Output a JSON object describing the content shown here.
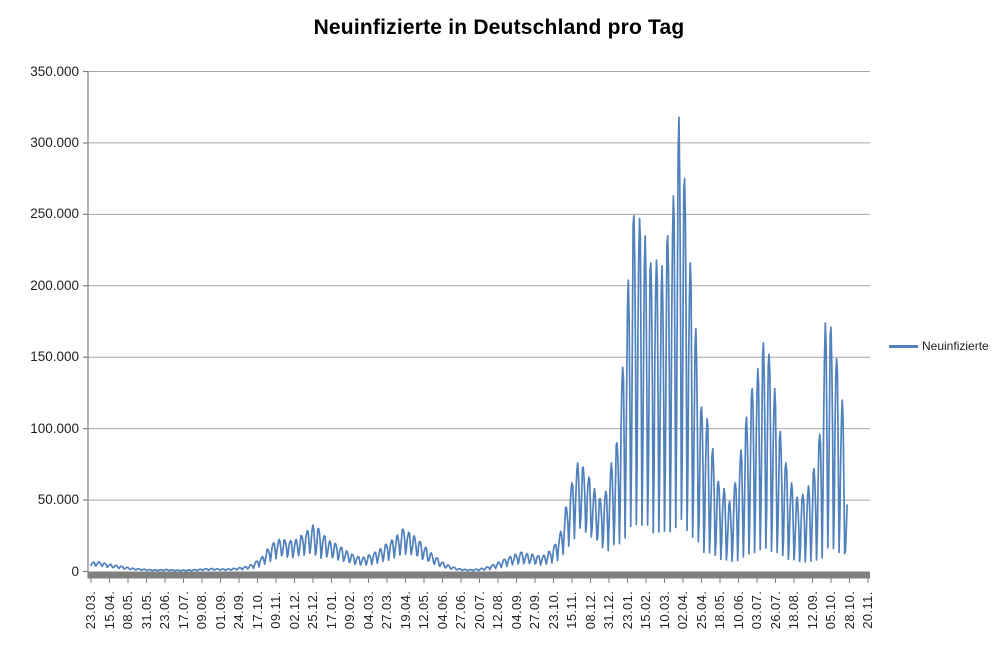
{
  "chart_data": {
    "type": "line",
    "title": "Neuinfizierte in Deutschland pro Tag",
    "xlabel": "",
    "ylabel": "",
    "grid": true,
    "legend": {
      "position": "right",
      "entries": [
        "Neuinfizierte"
      ]
    },
    "colors": {
      "series": "#4f81bd",
      "gridline": "#a6a6a6",
      "axis": "#808080",
      "label_text": "#1f1f1f"
    },
    "y_axis": {
      "min": 0,
      "max": 350000,
      "tick_step": 50000,
      "number_format": "German thousands (1.000)",
      "tick_labels_top_to_bottom": [
        "350.000",
        "300.000",
        "250.000",
        "200.000",
        "150.000",
        "100.000",
        "50.000",
        "0"
      ]
    },
    "x_axis": {
      "unit": "date DD.MM., daily categories, label every 23rd point",
      "points_per_tick": 23,
      "tick_labels": [
        "23.03.",
        "15.04.",
        "08.05.",
        "31.05.",
        "23.06.",
        "17.07.",
        "09.08.",
        "01.09.",
        "24.09.",
        "17.10.",
        "09.11.",
        "02.12.",
        "25.12.",
        "17.01.",
        "09.02.",
        "04.03.",
        "27.03.",
        "19.04.",
        "12.05.",
        "04.06.",
        "27.06.",
        "20.07.",
        "12.08.",
        "04.09.",
        "27.09.",
        "23.10.",
        "15.11.",
        "08.12.",
        "31.12.",
        "23.01.",
        "15.02.",
        "10.03.",
        "02.04.",
        "25.04.",
        "18.05.",
        "10.06.",
        "03.07.",
        "26.07.",
        "18.08.",
        "12.09.",
        "05.10.",
        "28.10.",
        "20.11."
      ]
    },
    "series": [
      {
        "name": "Neuinfizierte",
        "encoding": "weekly_envelope: [weekday_peak, weekend_trough] per 7-point week; daily values oscillate between trough and peak per day_pattern",
        "points_per_week": 7,
        "total_points": 941,
        "day_pattern": [
          0.22,
          0.6,
          0.92,
          1.0,
          0.88,
          0.5,
          0.0
        ],
        "weekly_peak_trough": [
          [
            6500,
            3800
          ],
          [
            6800,
            3900
          ],
          [
            5800,
            3200
          ],
          [
            5000,
            2700
          ],
          [
            4300,
            2300
          ],
          [
            3600,
            1900
          ],
          [
            2900,
            1500
          ],
          [
            2300,
            1150
          ],
          [
            1900,
            950
          ],
          [
            1600,
            800
          ],
          [
            1350,
            650
          ],
          [
            1150,
            550
          ],
          [
            1250,
            600
          ],
          [
            1400,
            650
          ],
          [
            1150,
            550
          ],
          [
            1000,
            480
          ],
          [
            1000,
            480
          ],
          [
            1100,
            520
          ],
          [
            1300,
            620
          ],
          [
            1600,
            760
          ],
          [
            1900,
            900
          ],
          [
            2100,
            1000
          ],
          [
            1900,
            900
          ],
          [
            1750,
            830
          ],
          [
            1850,
            880
          ],
          [
            2200,
            1050
          ],
          [
            2700,
            1280
          ],
          [
            3400,
            1600
          ],
          [
            4700,
            2200
          ],
          [
            7200,
            3400
          ],
          [
            10500,
            4900
          ],
          [
            15500,
            7200
          ],
          [
            20000,
            9300
          ],
          [
            22500,
            10500
          ],
          [
            22000,
            10200
          ],
          [
            21500,
            10000
          ],
          [
            22500,
            10500
          ],
          [
            25000,
            11600
          ],
          [
            28500,
            13200
          ],
          [
            32500,
            11000
          ],
          [
            30000,
            9500
          ],
          [
            25000,
            10400
          ],
          [
            21500,
            9300
          ],
          [
            19500,
            8400
          ],
          [
            17000,
            7300
          ],
          [
            14500,
            6200
          ],
          [
            12000,
            5200
          ],
          [
            10500,
            4500
          ],
          [
            10000,
            4300
          ],
          [
            11500,
            5000
          ],
          [
            13500,
            5800
          ],
          [
            16000,
            6900
          ],
          [
            19000,
            8200
          ],
          [
            22000,
            9500
          ],
          [
            25500,
            11000
          ],
          [
            29500,
            12700
          ],
          [
            27500,
            11800
          ],
          [
            25000,
            10800
          ],
          [
            21000,
            9000
          ],
          [
            17000,
            7300
          ],
          [
            13000,
            5600
          ],
          [
            9500,
            4100
          ],
          [
            6500,
            2800
          ],
          [
            4500,
            1900
          ],
          [
            3000,
            1300
          ],
          [
            2000,
            860
          ],
          [
            1500,
            640
          ],
          [
            1300,
            560
          ],
          [
            1600,
            690
          ],
          [
            2200,
            950
          ],
          [
            3200,
            1400
          ],
          [
            4800,
            2100
          ],
          [
            6500,
            2800
          ],
          [
            8500,
            3700
          ],
          [
            10500,
            4500
          ],
          [
            12000,
            5200
          ],
          [
            13500,
            5800
          ],
          [
            12500,
            5400
          ],
          [
            12000,
            5200
          ],
          [
            11000,
            4700
          ],
          [
            11500,
            5000
          ],
          [
            14000,
            6000
          ],
          [
            19000,
            8000
          ],
          [
            28000,
            11500
          ],
          [
            45000,
            18000
          ],
          [
            62000,
            24000
          ],
          [
            76000,
            29000
          ],
          [
            73000,
            28000
          ],
          [
            66000,
            25000
          ],
          [
            58000,
            21000
          ],
          [
            51000,
            17000
          ],
          [
            56000,
            15000
          ],
          [
            76000,
            18000
          ],
          [
            90000,
            20000
          ],
          [
            143000,
            24000
          ],
          [
            204000,
            30000
          ],
          [
            249000,
            34000
          ],
          [
            247000,
            33000
          ],
          [
            235000,
            31000
          ],
          [
            216000,
            28000
          ],
          [
            218000,
            28000
          ],
          [
            214000,
            27000
          ],
          [
            235000,
            29000
          ],
          [
            263000,
            31000
          ],
          [
            318000,
            35000
          ],
          [
            275000,
            30000
          ],
          [
            216000,
            24000
          ],
          [
            170000,
            20000
          ],
          [
            115000,
            14000
          ],
          [
            107000,
            13000
          ],
          [
            86000,
            11000
          ],
          [
            63000,
            9000
          ],
          [
            58000,
            8000
          ],
          [
            49000,
            7000
          ],
          [
            62000,
            8000
          ],
          [
            85000,
            10000
          ],
          [
            108000,
            12000
          ],
          [
            128000,
            14000
          ],
          [
            142000,
            15000
          ],
          [
            160000,
            16000
          ],
          [
            152000,
            15000
          ],
          [
            128000,
            13000
          ],
          [
            98000,
            11000
          ],
          [
            76000,
            9000
          ],
          [
            62000,
            8000
          ],
          [
            52000,
            7000
          ],
          [
            54000,
            7000
          ],
          [
            60000,
            7000
          ],
          [
            72000,
            8000
          ],
          [
            96000,
            10000
          ],
          [
            174000,
            16000
          ],
          [
            171000,
            16000
          ],
          [
            149000,
            14000
          ],
          [
            120000,
            12000
          ],
          [
            48000,
            5000
          ]
        ],
        "notable_values": {
          "first_wave_peak_apr_2020": 6800,
          "winter_2020_peak_dec": 33000,
          "spring_2021_peak_apr": 30000,
          "autumn_2021_peak_nov": 76000,
          "omicron_feb_2022_peak": 249000,
          "max_mar_2022": 318000,
          "summer_2022_peak_jul": 160000,
          "autumn_2022_peak_oct": 174000,
          "last_value": 45000
        }
      }
    ]
  }
}
